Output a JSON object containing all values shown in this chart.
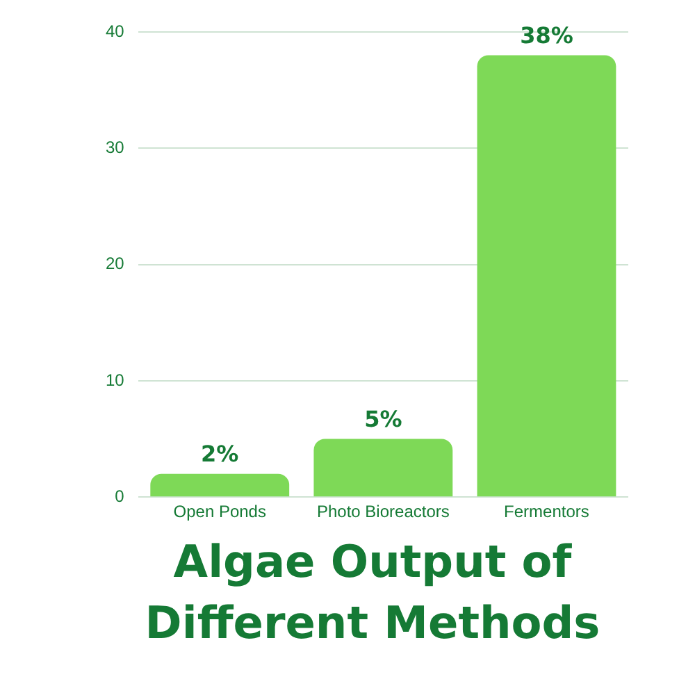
{
  "chart_data": {
    "type": "bar",
    "title": "Algae Output of Different Methods",
    "categories": [
      "Open Ponds",
      "Photo Bioreactors",
      "Fermentors"
    ],
    "values": [
      2,
      5,
      38
    ],
    "value_labels": [
      "2%",
      "5%",
      "38%"
    ],
    "color": "#7ed957",
    "ylim": [
      0,
      40
    ],
    "yticks": [
      0,
      10,
      20,
      30,
      40
    ],
    "grid": "y",
    "legend": false
  }
}
